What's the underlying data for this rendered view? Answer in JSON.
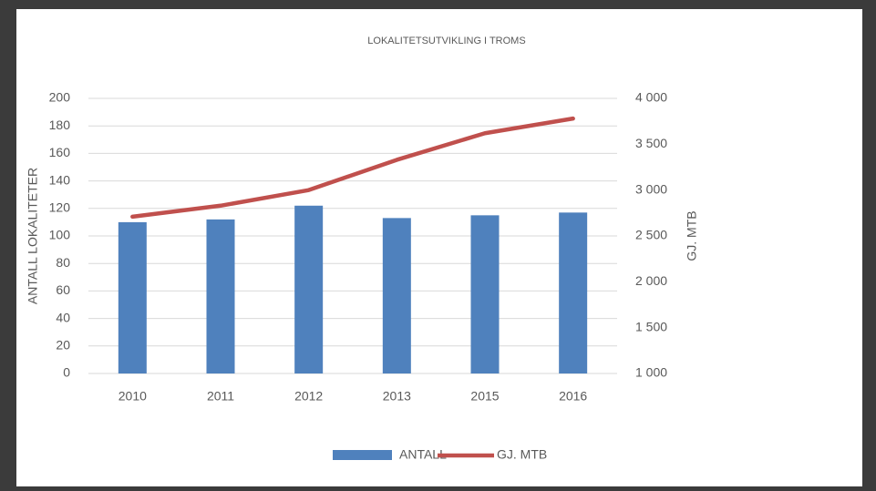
{
  "chart_data": {
    "type": "combo",
    "title": "LOKALITETSUTVIKLING I TROMS",
    "y_label": "ANTALL LOKALITETER",
    "y2_label": "GJ. MTB",
    "categories": [
      "2010",
      "2011",
      "2012",
      "2013",
      "2015",
      "2016"
    ],
    "series": [
      {
        "name": "ANTALL",
        "type": "bar",
        "color": "#4f81bd",
        "values": [
          110,
          112,
          122,
          113,
          115,
          117
        ]
      },
      {
        "name": "GJ. MTB",
        "type": "line",
        "axis": "y2",
        "color": "#c0504d",
        "values": [
          2710,
          2830,
          3000,
          3330,
          3620,
          3780
        ]
      }
    ],
    "ylim": [
      0,
      200
    ],
    "yticks": [
      0,
      20,
      40,
      60,
      80,
      100,
      120,
      140,
      160,
      180,
      200
    ],
    "y2lim": [
      1000,
      4000
    ],
    "y2ticks": [
      {
        "value": 1000,
        "label": "1 000"
      },
      {
        "value": 1500,
        "label": "1 500"
      },
      {
        "value": 2000,
        "label": "2 000"
      },
      {
        "value": 2500,
        "label": "2 500"
      },
      {
        "value": 3000,
        "label": "3 000"
      },
      {
        "value": 3500,
        "label": "3 500"
      },
      {
        "value": 4000,
        "label": "4 000"
      }
    ],
    "grid": true,
    "legend": "bottom"
  }
}
